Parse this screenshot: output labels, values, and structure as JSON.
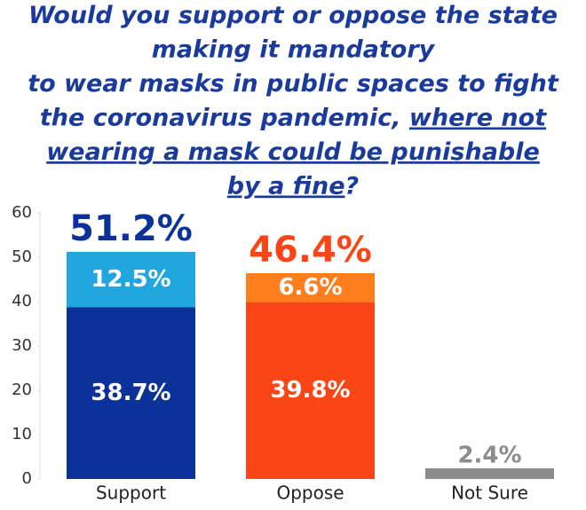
{
  "chart_data": {
    "type": "stacked_bar",
    "title": [
      [
        {
          "text": "Would you support or oppose the state",
          "underline": false
        }
      ],
      [
        {
          "text": "making it mandatory",
          "underline": false
        }
      ],
      [
        {
          "text": "to wear masks in public spaces to fight",
          "underline": false
        }
      ],
      [
        {
          "text": "the coronavirus pandemic, ",
          "underline": false
        },
        {
          "text": "where not",
          "underline": true
        }
      ],
      [
        {
          "text": "wearing a mask could be punishable ",
          "underline": true
        }
      ],
      [
        {
          "text": "by a fine",
          "underline": true
        },
        {
          "text": "?",
          "underline": false
        }
      ]
    ],
    "title_color": "#1a3a9c",
    "categories": [
      "Support",
      "Oppose",
      "Not Sure"
    ],
    "series": [
      {
        "values": [
          38.7,
          39.8,
          2.4
        ],
        "value_labels": [
          "38.7%",
          "39.8%",
          "2.4%"
        ],
        "colors": [
          "#0a3299",
          "#fa4616",
          "#8c8c8c"
        ]
      },
      {
        "values": [
          12.5,
          6.6,
          null
        ],
        "value_labels": [
          "12.5%",
          "6.6%",
          null
        ],
        "colors": [
          "#21a6e0",
          "#ff7f1f",
          null
        ]
      }
    ],
    "totals": {
      "values": [
        51.2,
        46.4,
        null
      ],
      "value_labels": [
        "51.2%",
        "46.4%",
        null
      ],
      "colors": [
        "#0a3299",
        "#fa4616",
        null
      ]
    },
    "ylim": [
      0,
      60
    ],
    "yticks": [
      0,
      10,
      20,
      30,
      40,
      50,
      60
    ]
  }
}
